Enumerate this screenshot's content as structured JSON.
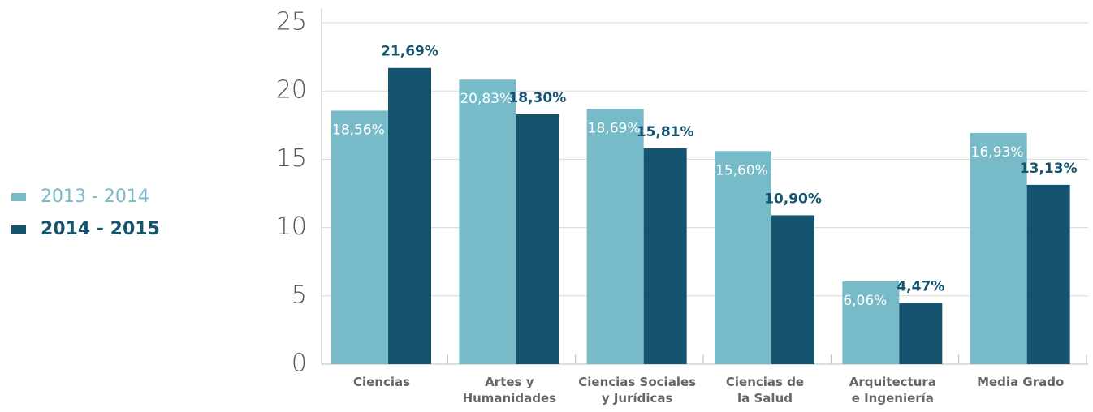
{
  "chart_data": {
    "type": "bar",
    "categories": [
      [
        "Ciencias"
      ],
      [
        "Artes y",
        "Humanidades"
      ],
      [
        "Ciencias Sociales",
        "y Jurídicas"
      ],
      [
        "Ciencias de",
        "la Salud"
      ],
      [
        "Arquitectura",
        "e Ingeniería"
      ],
      [
        "Media Grado"
      ]
    ],
    "series": [
      {
        "name": "2013 - 2014",
        "color": "#77bac8",
        "values": [
          18.56,
          20.83,
          18.69,
          15.6,
          6.06,
          16.93
        ],
        "value_labels": [
          "18,56%",
          "20,83%",
          "18,69%",
          "15,60%",
          "6,06%",
          "16,93%"
        ]
      },
      {
        "name": "2014 - 2015",
        "color": "#15536e",
        "values": [
          21.69,
          18.3,
          15.81,
          10.9,
          4.47,
          13.13
        ],
        "value_labels": [
          "21,69%",
          "18,30%",
          "15,81%",
          "10,90%",
          "4,47%",
          "13,13%"
        ]
      }
    ],
    "ylim": [
      0,
      25
    ],
    "yticks": [
      0,
      5,
      10,
      15,
      20,
      25
    ],
    "grid": true,
    "legend": "left"
  }
}
